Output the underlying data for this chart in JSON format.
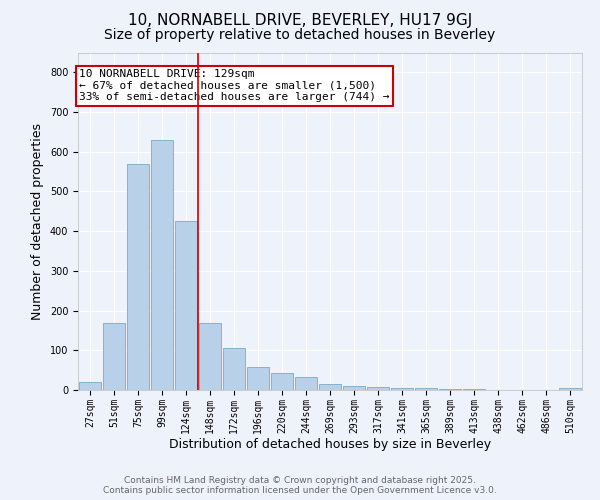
{
  "title": "10, NORNABELL DRIVE, BEVERLEY, HU17 9GJ",
  "subtitle": "Size of property relative to detached houses in Beverley",
  "xlabel": "Distribution of detached houses by size in Beverley",
  "ylabel": "Number of detached properties",
  "categories": [
    "27sqm",
    "51sqm",
    "75sqm",
    "99sqm",
    "124sqm",
    "148sqm",
    "172sqm",
    "196sqm",
    "220sqm",
    "244sqm",
    "269sqm",
    "293sqm",
    "317sqm",
    "341sqm",
    "365sqm",
    "389sqm",
    "413sqm",
    "438sqm",
    "462sqm",
    "486sqm",
    "510sqm"
  ],
  "values": [
    20,
    170,
    570,
    630,
    425,
    170,
    105,
    57,
    42,
    32,
    15,
    10,
    8,
    6,
    5,
    3,
    2,
    1,
    1,
    1,
    5
  ],
  "bar_color": "#b8d0e8",
  "bar_edge_color": "#7aaac8",
  "background_color": "#eef2fb",
  "grid_color": "#ffffff",
  "red_line_x": 4.48,
  "annotation_text": "10 NORNABELL DRIVE: 129sqm\n← 67% of detached houses are smaller (1,500)\n33% of semi-detached houses are larger (744) →",
  "annotation_box_color": "#cc0000",
  "ylim": [
    0,
    850
  ],
  "yticks": [
    0,
    100,
    200,
    300,
    400,
    500,
    600,
    700,
    800
  ],
  "footer_line1": "Contains HM Land Registry data © Crown copyright and database right 2025.",
  "footer_line2": "Contains public sector information licensed under the Open Government Licence v3.0.",
  "title_fontsize": 11,
  "subtitle_fontsize": 10,
  "axis_label_fontsize": 9,
  "tick_fontsize": 7,
  "annotation_fontsize": 8,
  "footer_fontsize": 6.5
}
